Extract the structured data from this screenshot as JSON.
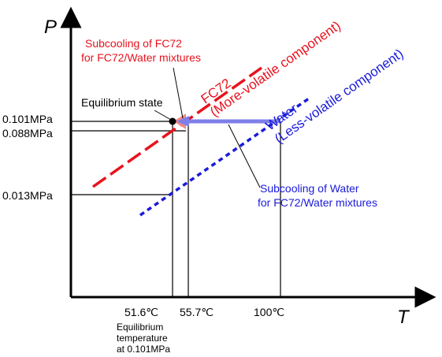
{
  "axes": {
    "y_label": "P",
    "x_label": "T"
  },
  "pressure_ticks": [
    "0.101MPa",
    "0.088MPa",
    "0.013MPa"
  ],
  "temperature_ticks": [
    "51.6℃",
    "55.7℃",
    "100℃"
  ],
  "curves": {
    "fc72": {
      "name": "FC72",
      "subtitle": "(More-volatile component)",
      "color": "#e8121d"
    },
    "water": {
      "name": "Water",
      "subtitle": "(Less-volatile component)",
      "color": "#1a1adb"
    }
  },
  "annotations": {
    "equilibrium_state": "Equilibrium state",
    "fc72_subcooling_line1": "Subcooling of FC72",
    "fc72_subcooling_line2": "for FC72/Water mixtures",
    "water_subcooling_line1": "Subcooling of Water",
    "water_subcooling_line2": "for FC72/Water mixtures",
    "eq_temp_line1": "Equilibrium",
    "eq_temp_line2": "temperature",
    "eq_temp_line3": "at 0.101MPa"
  },
  "colors": {
    "axis": "#000000",
    "fc72_arrow": "#f08a8a",
    "water_arrow": "#7f7fe8"
  }
}
